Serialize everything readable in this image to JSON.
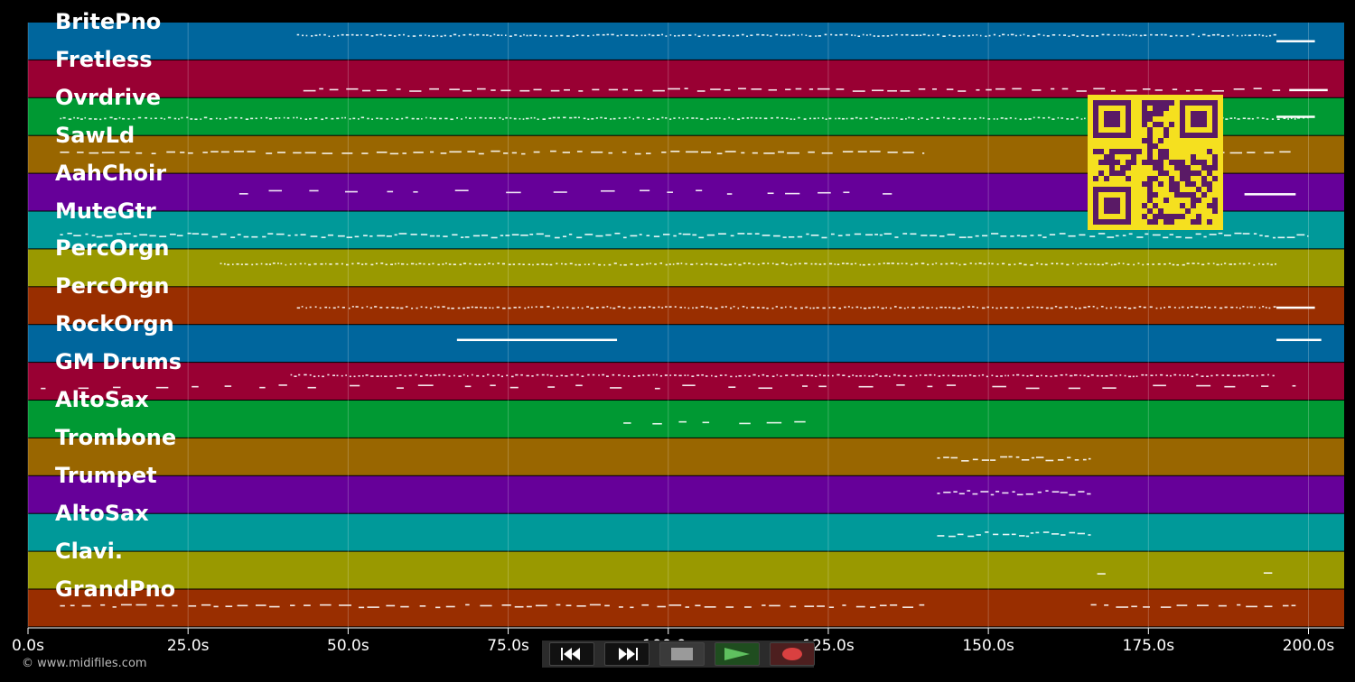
{
  "app": {
    "copyright": "© www.midifiles.com"
  },
  "colors": {
    "palette": [
      "#00669d",
      "#990033",
      "#009933",
      "#996600",
      "#660099",
      "#009999",
      "#999900",
      "#992e00"
    ],
    "note": "#ffffff",
    "qr_fg": "#5a1a66",
    "qr_bg": "#f5e01f"
  },
  "timeline": {
    "ticks": [
      "0.0s",
      "25.0s",
      "50.0s",
      "75.0s",
      "100.0s",
      "125.0s",
      "150.0s",
      "175.0s",
      "200.0s"
    ],
    "max_seconds": 205
  },
  "tracks": [
    {
      "label": "BritePno",
      "notes": [
        [
          42,
          195,
          0.35,
          "tick"
        ],
        [
          195,
          201,
          0.5,
          "solid"
        ]
      ]
    },
    {
      "label": "Fretless",
      "notes": [
        [
          43,
          196,
          0.8,
          "dash"
        ],
        [
          197,
          203,
          0.8,
          "solid"
        ]
      ]
    },
    {
      "label": "Ovrdrive",
      "notes": [
        [
          5,
          200,
          0.55,
          "tick"
        ],
        [
          195,
          201,
          0.5,
          "solid"
        ]
      ]
    },
    {
      "label": "SawLd",
      "notes": [
        [
          5,
          140,
          0.45,
          "dash"
        ],
        [
          167,
          198,
          0.45,
          "dash"
        ]
      ]
    },
    {
      "label": "AahChoir",
      "notes": [
        [
          33,
          140,
          0.5,
          "sparse"
        ],
        [
          190,
          198,
          0.55,
          "solid"
        ]
      ]
    },
    {
      "label": "MuteGtr",
      "notes": [
        [
          5,
          200,
          0.65,
          "wavy"
        ]
      ]
    },
    {
      "label": "PercOrgn",
      "notes": [
        [
          30,
          195,
          0.4,
          "tick"
        ]
      ]
    },
    {
      "label": "PercOrgn",
      "notes": [
        [
          42,
          195,
          0.55,
          "tick"
        ],
        [
          195,
          201,
          0.55,
          "solid"
        ]
      ]
    },
    {
      "label": "RockOrgn",
      "notes": [
        [
          67,
          92,
          0.4,
          "solid"
        ],
        [
          195,
          202,
          0.4,
          "solid"
        ]
      ]
    },
    {
      "label": "GM Drums",
      "notes": [
        [
          41,
          195,
          0.35,
          "tick"
        ],
        [
          2,
          198,
          0.65,
          "sparse"
        ]
      ]
    },
    {
      "label": "AltoSax",
      "notes": [
        [
          93,
          125,
          0.6,
          "sparse"
        ]
      ]
    },
    {
      "label": "Trombone",
      "notes": [
        [
          142,
          166,
          0.55,
          "wavy"
        ]
      ]
    },
    {
      "label": "Trumpet",
      "notes": [
        [
          142,
          166,
          0.45,
          "wavy"
        ]
      ]
    },
    {
      "label": "AltoSax",
      "notes": [
        [
          142,
          166,
          0.55,
          "wavy"
        ]
      ]
    },
    {
      "label": "Clavi.",
      "notes": [
        [
          167,
          170,
          0.6,
          "sparse"
        ],
        [
          193,
          196,
          0.6,
          "sparse"
        ]
      ]
    },
    {
      "label": "GrandPno",
      "notes": [
        [
          5,
          140,
          0.45,
          "dash"
        ],
        [
          166,
          198,
          0.45,
          "dash"
        ]
      ]
    }
  ],
  "controls": {
    "rewind_icon": "rewind-icon",
    "fast_forward_icon": "fast-forward-icon",
    "stop_icon": "stop-icon",
    "play_icon": "play-icon",
    "record_icon": "record-icon"
  }
}
